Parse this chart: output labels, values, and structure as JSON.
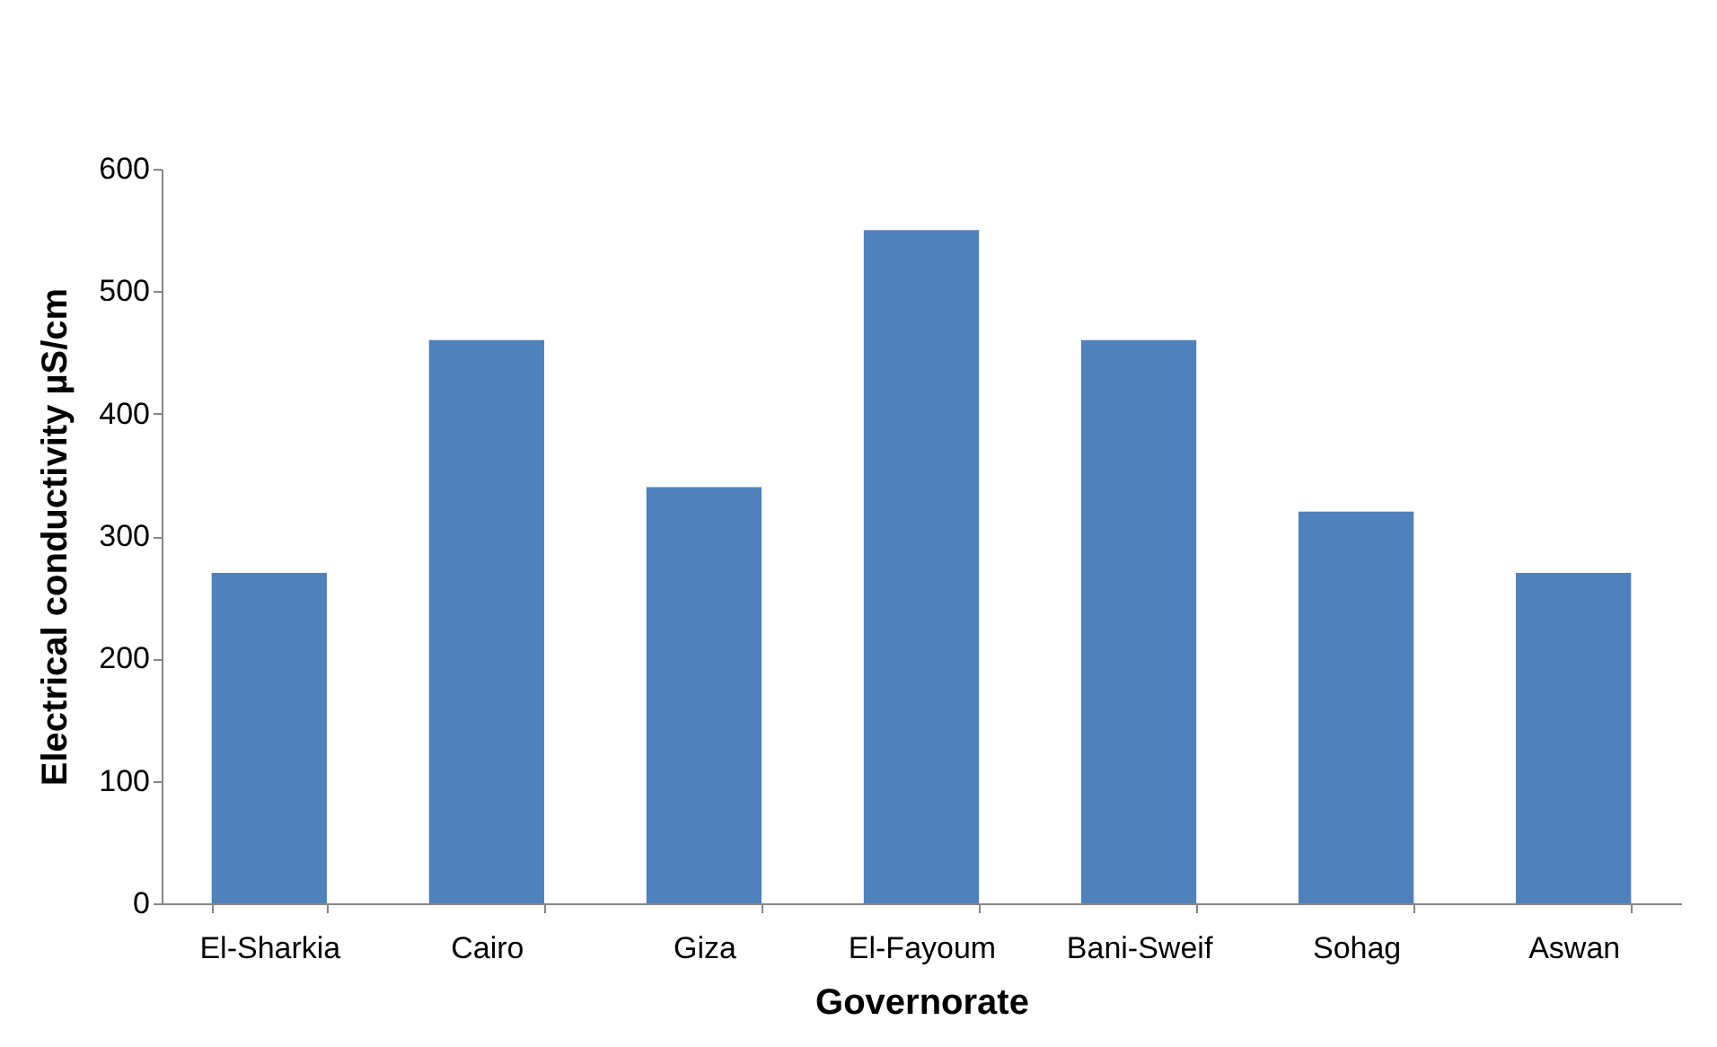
{
  "chart_data": {
    "type": "bar",
    "xlabel": "Governorate",
    "ylabel": "Electrical conductivity µS/cm",
    "categories": [
      "El-Sharkia",
      "Cairo",
      "Giza",
      "El-Fayoum",
      "Bani-Sweif",
      "Sohag",
      "Aswan"
    ],
    "values": [
      270,
      460,
      340,
      550,
      460,
      320,
      270
    ],
    "color": "#4f81bd",
    "ylim": [
      0,
      600
    ],
    "yticks": [
      0,
      100,
      200,
      300,
      400,
      500,
      600
    ],
    "grid": false
  }
}
